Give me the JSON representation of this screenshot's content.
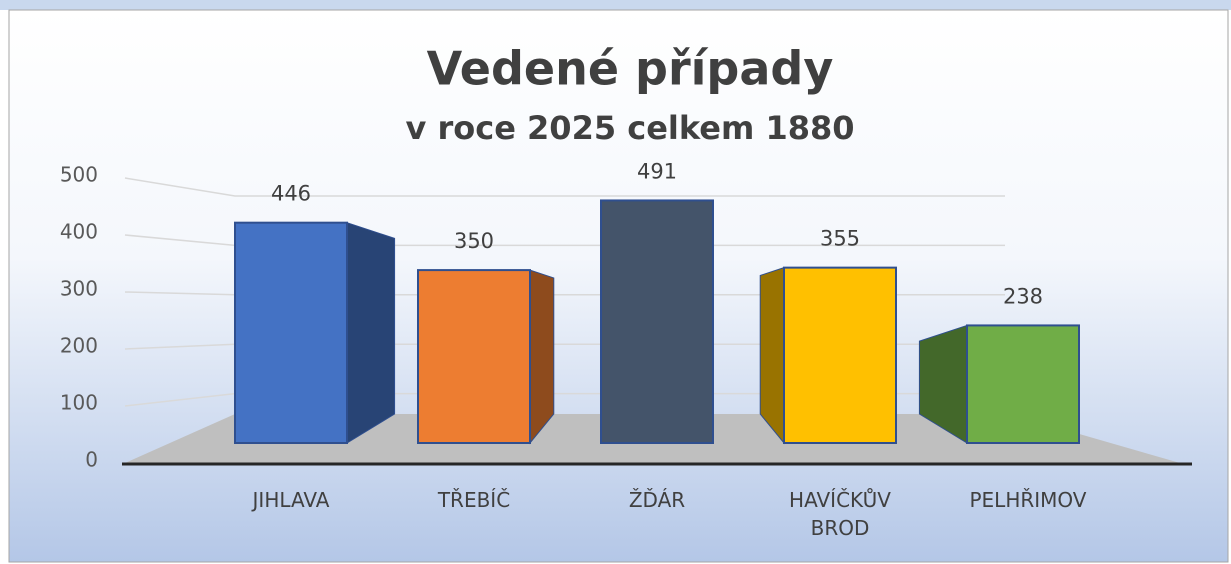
{
  "chart_data": {
    "type": "bar3d",
    "title": "Vedené případy",
    "subtitle": "v roce 2025 celkem 1880",
    "categories": [
      "JIHLAVA",
      "TŘEBÍČ",
      "ŽĎÁR",
      "HAVÍČKŮV BROD",
      "PELHŘIMOV"
    ],
    "values": [
      446,
      350,
      491,
      355,
      238
    ],
    "colors": [
      "#4472c4",
      "#ed7d31",
      "#44546a",
      "#ffc000",
      "#70ad47"
    ],
    "ylim": [
      0,
      500
    ],
    "yticks": [
      0,
      100,
      200,
      300,
      400,
      500
    ],
    "grid": true
  }
}
